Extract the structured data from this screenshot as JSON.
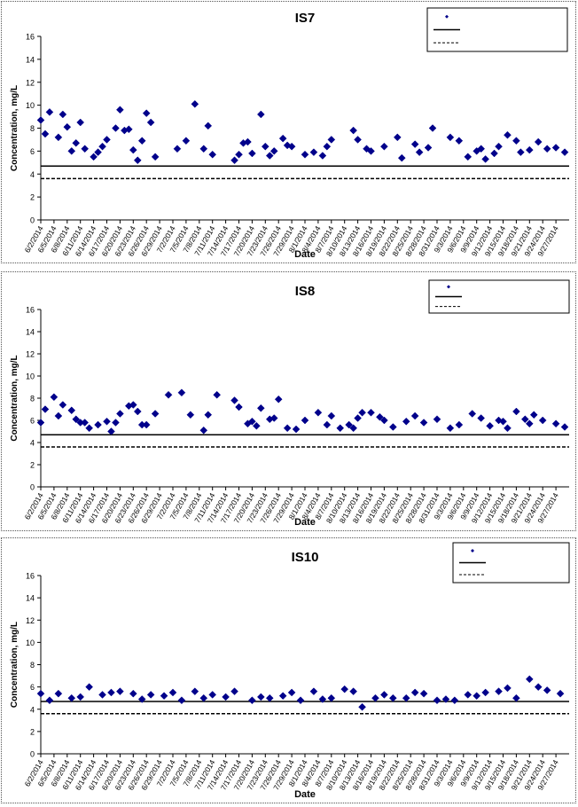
{
  "chart_data": [
    {
      "type": "scatter",
      "title": "IS7",
      "xlabel": "Date",
      "ylabel": "Concentration, mg/L",
      "ylim": [
        0,
        16
      ],
      "yticks": [
        0,
        2,
        4,
        6,
        8,
        10,
        12,
        14,
        16
      ],
      "xlim": [
        "2014-06-02",
        "2014-09-30"
      ],
      "xtick_labels": [
        "6/2/2014",
        "6/5/2014",
        "6/8/2014",
        "6/11/2014",
        "6/14/2014",
        "6/17/2014",
        "6/20/2014",
        "6/23/2014",
        "6/26/2014",
        "6/29/2014",
        "7/2/2014",
        "7/5/2014",
        "7/8/2014",
        "7/11/2014",
        "7/14/2014",
        "7/17/2014",
        "7/20/2014",
        "7/23/2014",
        "7/26/2014",
        "7/29/2014",
        "8/1/2014",
        "8/4/2014",
        "8/7/2014",
        "8/10/2014",
        "8/13/2014",
        "8/16/2014",
        "8/19/2014",
        "8/22/2014",
        "8/25/2014",
        "8/28/2014",
        "8/31/2014",
        "9/3/2014",
        "9/6/2014",
        "9/9/2014",
        "9/12/2014",
        "9/15/2014",
        "9/18/2014",
        "9/21/2014",
        "9/24/2014",
        "9/27/2014"
      ],
      "grid": false,
      "legend_position": "top-right",
      "legend_entries": [
        "",
        "",
        ""
      ],
      "series": [
        {
          "marker": "diamond",
          "color": "#00008B",
          "x": [
            "2014-06-02",
            "2014-06-03",
            "2014-06-04",
            "2014-06-06",
            "2014-06-07",
            "2014-06-08",
            "2014-06-09",
            "2014-06-10",
            "2014-06-11",
            "2014-06-12",
            "2014-06-14",
            "2014-06-15",
            "2014-06-16",
            "2014-06-17",
            "2014-06-19",
            "2014-06-20",
            "2014-06-21",
            "2014-06-22",
            "2014-06-23",
            "2014-06-24",
            "2014-06-25",
            "2014-06-26",
            "2014-06-27",
            "2014-06-28",
            "2014-07-03",
            "2014-07-05",
            "2014-07-07",
            "2014-07-09",
            "2014-07-10",
            "2014-07-11",
            "2014-07-16",
            "2014-07-17",
            "2014-07-18",
            "2014-07-19",
            "2014-07-20",
            "2014-07-22",
            "2014-07-23",
            "2014-07-24",
            "2014-07-25",
            "2014-07-27",
            "2014-07-28",
            "2014-07-29",
            "2014-08-01",
            "2014-08-03",
            "2014-08-05",
            "2014-08-06",
            "2014-08-07",
            "2014-08-12",
            "2014-08-13",
            "2014-08-15",
            "2014-08-16",
            "2014-08-19",
            "2014-08-22",
            "2014-08-23",
            "2014-08-26",
            "2014-08-27",
            "2014-08-29",
            "2014-08-30",
            "2014-09-03",
            "2014-09-05",
            "2014-09-07",
            "2014-09-09",
            "2014-09-10",
            "2014-09-11",
            "2014-09-13",
            "2014-09-14",
            "2014-09-16",
            "2014-09-18",
            "2014-09-19",
            "2014-09-21",
            "2014-09-23",
            "2014-09-25",
            "2014-09-27",
            "2014-09-29"
          ],
          "y": [
            8.7,
            7.5,
            9.4,
            7.2,
            9.2,
            8.1,
            6.0,
            6.7,
            8.5,
            6.2,
            5.5,
            5.9,
            6.4,
            7.0,
            8.0,
            9.6,
            7.8,
            7.9,
            6.1,
            5.2,
            6.9,
            9.3,
            8.5,
            5.5,
            6.2,
            6.9,
            10.1,
            6.2,
            8.2,
            5.7,
            5.2,
            5.7,
            6.7,
            6.8,
            5.8,
            9.2,
            6.4,
            5.6,
            6.0,
            7.1,
            6.5,
            6.4,
            5.7,
            5.9,
            5.6,
            6.4,
            7.0,
            7.8,
            7.0,
            6.2,
            6.0,
            6.4,
            7.2,
            5.4,
            6.6,
            5.9,
            6.3,
            8.0,
            7.2,
            6.9,
            5.5,
            6.0,
            6.2,
            5.3,
            5.8,
            6.4,
            7.4,
            6.9,
            5.9,
            6.1,
            6.8,
            6.2,
            6.3,
            5.9
          ]
        },
        {
          "style": "solid",
          "color": "#000000",
          "y": 4.7
        },
        {
          "style": "dashed",
          "color": "#000000",
          "y": 3.6
        }
      ]
    },
    {
      "type": "scatter",
      "title": "IS8",
      "xlabel": "Date",
      "ylabel": "Concentration, mg/L",
      "ylim": [
        0,
        16
      ],
      "yticks": [
        0,
        2,
        4,
        6,
        8,
        10,
        12,
        14,
        16
      ],
      "xlim": [
        "2014-06-02",
        "2014-09-30"
      ],
      "xtick_labels": [
        "6/2/2014",
        "6/5/2014",
        "6/8/2014",
        "6/11/2014",
        "6/14/2014",
        "6/17/2014",
        "6/20/2014",
        "6/23/2014",
        "6/26/2014",
        "6/29/2014",
        "7/2/2014",
        "7/5/2014",
        "7/8/2014",
        "7/11/2014",
        "7/14/2014",
        "7/17/2014",
        "7/20/2014",
        "7/23/2014",
        "7/26/2014",
        "7/29/2014",
        "8/1/2014",
        "8/4/2014",
        "8/7/2014",
        "8/10/2014",
        "8/13/2014",
        "8/16/2014",
        "8/19/2014",
        "8/22/2014",
        "8/25/2014",
        "8/28/2014",
        "8/31/2014",
        "9/3/2014",
        "9/6/2014",
        "9/9/2014",
        "9/12/2014",
        "9/15/2014",
        "9/18/2014",
        "9/21/2014",
        "9/24/2014",
        "9/27/2014"
      ],
      "grid": false,
      "legend_position": "top-right",
      "legend_entries": [
        "",
        "",
        ""
      ],
      "series": [
        {
          "marker": "diamond",
          "color": "#00008B",
          "x": [
            "2014-06-02",
            "2014-06-03",
            "2014-06-05",
            "2014-06-06",
            "2014-06-07",
            "2014-06-09",
            "2014-06-10",
            "2014-06-11",
            "2014-06-12",
            "2014-06-13",
            "2014-06-15",
            "2014-06-17",
            "2014-06-18",
            "2014-06-19",
            "2014-06-20",
            "2014-06-22",
            "2014-06-23",
            "2014-06-24",
            "2014-06-25",
            "2014-06-26",
            "2014-06-28",
            "2014-07-01",
            "2014-07-04",
            "2014-07-06",
            "2014-07-09",
            "2014-07-10",
            "2014-07-12",
            "2014-07-16",
            "2014-07-17",
            "2014-07-19",
            "2014-07-20",
            "2014-07-21",
            "2014-07-22",
            "2014-07-24",
            "2014-07-25",
            "2014-07-26",
            "2014-07-28",
            "2014-07-30",
            "2014-08-01",
            "2014-08-04",
            "2014-08-06",
            "2014-08-07",
            "2014-08-09",
            "2014-08-11",
            "2014-08-12",
            "2014-08-13",
            "2014-08-14",
            "2014-08-16",
            "2014-08-18",
            "2014-08-19",
            "2014-08-21",
            "2014-08-24",
            "2014-08-26",
            "2014-08-28",
            "2014-08-31",
            "2014-09-03",
            "2014-09-05",
            "2014-09-08",
            "2014-09-10",
            "2014-09-12",
            "2014-09-14",
            "2014-09-15",
            "2014-09-16",
            "2014-09-18",
            "2014-09-20",
            "2014-09-21",
            "2014-09-22",
            "2014-09-24",
            "2014-09-27",
            "2014-09-29"
          ],
          "y": [
            5.8,
            7.0,
            8.1,
            6.4,
            7.4,
            6.9,
            6.1,
            5.8,
            5.8,
            5.3,
            5.6,
            5.9,
            5.0,
            5.8,
            6.6,
            7.3,
            7.4,
            6.8,
            5.6,
            5.6,
            6.6,
            8.3,
            8.5,
            6.5,
            5.1,
            6.5,
            8.3,
            7.8,
            7.2,
            5.7,
            5.9,
            5.5,
            7.1,
            6.1,
            6.2,
            7.9,
            5.3,
            5.2,
            6.0,
            6.7,
            5.6,
            6.4,
            5.3,
            5.6,
            5.3,
            6.2,
            6.7,
            6.7,
            6.3,
            6.0,
            5.4,
            5.9,
            6.4,
            5.8,
            6.1,
            5.3,
            5.6,
            6.6,
            6.2,
            5.5,
            6.0,
            5.9,
            5.3,
            6.8,
            6.1,
            5.7,
            6.5,
            6.0,
            5.7,
            5.4
          ]
        },
        {
          "style": "solid",
          "color": "#000000",
          "y": 4.7
        },
        {
          "style": "dashed",
          "color": "#000000",
          "y": 3.6
        }
      ]
    },
    {
      "type": "scatter",
      "title": "IS10",
      "xlabel": "Date",
      "ylabel": "Concentration, mg/L",
      "ylim": [
        0,
        16
      ],
      "yticks": [
        0,
        2,
        4,
        6,
        8,
        10,
        12,
        14,
        16
      ],
      "xlim": [
        "2014-06-02",
        "2014-09-30"
      ],
      "xtick_labels": [
        "6/2/2014",
        "6/5/2014",
        "6/8/2014",
        "6/11/2014",
        "6/14/2014",
        "6/17/2014",
        "6/20/2014",
        "6/23/2014",
        "6/26/2014",
        "6/29/2014",
        "7/2/2014",
        "7/5/2014",
        "7/8/2014",
        "7/11/2014",
        "7/14/2014",
        "7/17/2014",
        "7/20/2014",
        "7/23/2014",
        "7/26/2014",
        "7/29/2014",
        "8/1/2014",
        "8/4/2014",
        "8/7/2014",
        "8/10/2014",
        "8/13/2014",
        "8/16/2014",
        "8/19/2014",
        "8/22/2014",
        "8/25/2014",
        "8/28/2014",
        "8/31/2014",
        "9/3/2014",
        "9/6/2014",
        "9/9/2014",
        "9/12/2014",
        "9/15/2014",
        "9/18/2014",
        "9/21/2014",
        "9/24/2014",
        "9/27/2014"
      ],
      "grid": false,
      "legend_position": "top-right",
      "legend_entries": [
        "",
        "",
        ""
      ],
      "series": [
        {
          "marker": "diamond",
          "color": "#00008B",
          "x": [
            "2014-06-02",
            "2014-06-04",
            "2014-06-06",
            "2014-06-09",
            "2014-06-11",
            "2014-06-13",
            "2014-06-16",
            "2014-06-18",
            "2014-06-20",
            "2014-06-23",
            "2014-06-25",
            "2014-06-27",
            "2014-06-30",
            "2014-07-02",
            "2014-07-04",
            "2014-07-07",
            "2014-07-09",
            "2014-07-11",
            "2014-07-14",
            "2014-07-16",
            "2014-07-20",
            "2014-07-22",
            "2014-07-24",
            "2014-07-27",
            "2014-07-29",
            "2014-07-31",
            "2014-08-03",
            "2014-08-05",
            "2014-08-07",
            "2014-08-10",
            "2014-08-12",
            "2014-08-14",
            "2014-08-17",
            "2014-08-19",
            "2014-08-21",
            "2014-08-24",
            "2014-08-26",
            "2014-08-28",
            "2014-08-31",
            "2014-09-02",
            "2014-09-04",
            "2014-09-07",
            "2014-09-09",
            "2014-09-11",
            "2014-09-14",
            "2014-09-16",
            "2014-09-18",
            "2014-09-21",
            "2014-09-23",
            "2014-09-25",
            "2014-09-28"
          ],
          "y": [
            5.4,
            4.8,
            5.4,
            5.0,
            5.1,
            6.0,
            5.3,
            5.5,
            5.6,
            5.4,
            4.9,
            5.3,
            5.2,
            5.5,
            4.8,
            5.6,
            5.0,
            5.3,
            5.1,
            5.6,
            4.8,
            5.1,
            5.0,
            5.2,
            5.5,
            4.8,
            5.6,
            4.9,
            5.0,
            5.8,
            5.6,
            4.2,
            5.0,
            5.3,
            5.0,
            5.0,
            5.5,
            5.4,
            4.8,
            4.9,
            4.8,
            5.3,
            5.2,
            5.5,
            5.6,
            5.9,
            5.0,
            6.7,
            6.0,
            5.7,
            5.4
          ]
        },
        {
          "style": "solid",
          "color": "#000000",
          "y": 4.7
        },
        {
          "style": "dashed",
          "color": "#000000",
          "y": 3.6
        }
      ]
    }
  ]
}
